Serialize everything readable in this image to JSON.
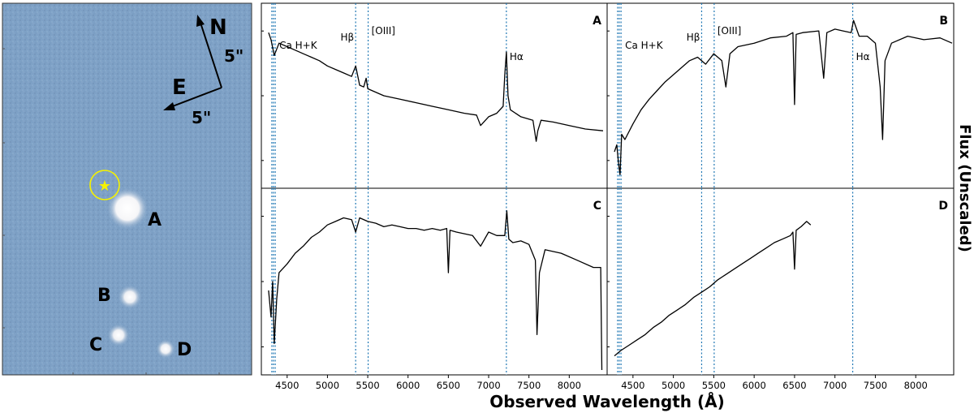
{
  "image_panel": {
    "sources": [
      {
        "label": "A"
      },
      {
        "label": "B"
      },
      {
        "label": "C"
      },
      {
        "label": "D"
      }
    ],
    "compass": {
      "north": "N",
      "east": "E",
      "scale_label": "5\""
    },
    "colors": {
      "sky": "#7ea1c6",
      "marker": "#f5f200"
    }
  },
  "chart_data": {
    "type": "line",
    "xlabel": "Observed Wavelength (Å)",
    "ylabel": "Flux (Unscaled)",
    "xlim": [
      4180,
      8470
    ],
    "xticks": [
      4500,
      5000,
      5500,
      6000,
      6500,
      7000,
      7500,
      8000
    ],
    "reference_lines": [
      {
        "label": "Ca H+K",
        "x": [
          4310,
          4330,
          4352
        ],
        "label_in": [
          "A",
          "B"
        ]
      },
      {
        "label": "Hβ",
        "x": [
          5350
        ],
        "label_in": [
          "A",
          "B"
        ]
      },
      {
        "label": "[OIII]",
        "x": [
          5505
        ],
        "label_in": [
          "A",
          "B"
        ]
      },
      {
        "label": "Hα",
        "x": [
          7220
        ],
        "label_in": [
          "A",
          "B"
        ]
      }
    ],
    "panels": [
      {
        "label": "A",
        "x": [
          4270,
          4300,
          4340,
          4400,
          4500,
          4600,
          4700,
          4800,
          4900,
          5000,
          5100,
          5200,
          5300,
          5350,
          5400,
          5450,
          5480,
          5500,
          5550,
          5700,
          5900,
          6100,
          6300,
          6500,
          6700,
          6850,
          6900,
          7000,
          7100,
          7180,
          7200,
          7220,
          7240,
          7270,
          7400,
          7550,
          7590,
          7610,
          7650,
          7800,
          8000,
          8200,
          8420
        ],
        "y": [
          0.86,
          0.82,
          0.73,
          0.8,
          0.78,
          0.76,
          0.74,
          0.72,
          0.7,
          0.67,
          0.65,
          0.63,
          0.61,
          0.67,
          0.56,
          0.55,
          0.6,
          0.54,
          0.53,
          0.5,
          0.48,
          0.46,
          0.44,
          0.42,
          0.4,
          0.39,
          0.33,
          0.38,
          0.4,
          0.44,
          0.62,
          0.75,
          0.5,
          0.42,
          0.38,
          0.36,
          0.24,
          0.3,
          0.36,
          0.35,
          0.33,
          0.31,
          0.3
        ]
      },
      {
        "label": "B",
        "x": [
          4270,
          4300,
          4320,
          4340,
          4360,
          4400,
          4500,
          4600,
          4700,
          4800,
          4900,
          5000,
          5100,
          5200,
          5300,
          5400,
          5500,
          5600,
          5650,
          5700,
          5800,
          6000,
          6200,
          6400,
          6480,
          6500,
          6520,
          6600,
          6800,
          6860,
          6900,
          7000,
          7100,
          7200,
          7230,
          7300,
          7400,
          7500,
          7560,
          7590,
          7620,
          7700,
          7900,
          8100,
          8300,
          8450
        ],
        "y": [
          0.18,
          0.22,
          0.12,
          0.05,
          0.28,
          0.25,
          0.34,
          0.42,
          0.48,
          0.53,
          0.58,
          0.62,
          0.66,
          0.7,
          0.72,
          0.68,
          0.74,
          0.7,
          0.55,
          0.74,
          0.78,
          0.8,
          0.83,
          0.84,
          0.86,
          0.45,
          0.85,
          0.86,
          0.87,
          0.6,
          0.86,
          0.88,
          0.87,
          0.86,
          0.93,
          0.84,
          0.84,
          0.8,
          0.55,
          0.25,
          0.7,
          0.8,
          0.84,
          0.82,
          0.83,
          0.8
        ]
      },
      {
        "label": "C",
        "x": [
          4270,
          4300,
          4320,
          4340,
          4370,
          4400,
          4500,
          4600,
          4700,
          4800,
          4900,
          5000,
          5100,
          5200,
          5300,
          5350,
          5400,
          5500,
          5600,
          5700,
          5800,
          5900,
          6000,
          6100,
          6200,
          6300,
          6400,
          6480,
          6500,
          6520,
          6600,
          6800,
          6900,
          7000,
          7100,
          7200,
          7225,
          7250,
          7300,
          7400,
          7500,
          7580,
          7600,
          7630,
          7700,
          7900,
          8100,
          8300,
          8390,
          8400,
          8405
        ],
        "y": [
          0.45,
          0.3,
          0.5,
          0.15,
          0.4,
          0.55,
          0.6,
          0.66,
          0.7,
          0.75,
          0.78,
          0.82,
          0.84,
          0.86,
          0.85,
          0.78,
          0.86,
          0.84,
          0.83,
          0.81,
          0.82,
          0.81,
          0.8,
          0.8,
          0.79,
          0.8,
          0.79,
          0.8,
          0.55,
          0.79,
          0.78,
          0.76,
          0.7,
          0.78,
          0.76,
          0.76,
          0.9,
          0.74,
          0.72,
          0.73,
          0.71,
          0.62,
          0.2,
          0.55,
          0.68,
          0.66,
          0.62,
          0.58,
          0.58,
          0.2,
          0.0
        ]
      },
      {
        "label": "D",
        "x": [
          4270,
          4350,
          4450,
          4550,
          4650,
          4750,
          4850,
          4950,
          5050,
          5150,
          5250,
          5350,
          5450,
          5550,
          5650,
          5750,
          5850,
          5950,
          6050,
          6150,
          6250,
          6350,
          6450,
          6480,
          6500,
          6520,
          6580,
          6650,
          6700
        ],
        "y": [
          0.08,
          0.11,
          0.14,
          0.17,
          0.2,
          0.24,
          0.27,
          0.31,
          0.34,
          0.37,
          0.41,
          0.44,
          0.47,
          0.51,
          0.54,
          0.57,
          0.6,
          0.63,
          0.66,
          0.69,
          0.72,
          0.74,
          0.76,
          0.78,
          0.57,
          0.79,
          0.81,
          0.84,
          0.82
        ]
      }
    ]
  }
}
